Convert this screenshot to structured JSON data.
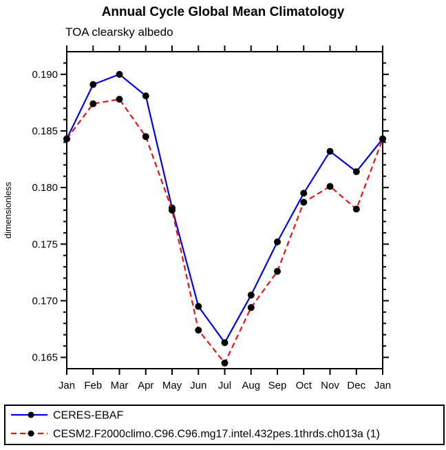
{
  "chart_data": {
    "type": "line",
    "title": "Annual Cycle Global Mean Climatology",
    "subtitle": "TOA clearsky albedo",
    "ylabel": "dimensionless",
    "xlabel": "",
    "categories": [
      "Jan",
      "Feb",
      "Mar",
      "Apr",
      "May",
      "Jun",
      "Jul",
      "Aug",
      "Sep",
      "Oct",
      "Nov",
      "Dec",
      "Jan"
    ],
    "series": [
      {
        "name": "CERES-EBAF",
        "color": "#0000ee",
        "line_style": "solid",
        "marker": "circle",
        "marker_color": "#000000",
        "values": [
          0.1843,
          0.1891,
          0.19,
          0.1881,
          0.1782,
          0.1695,
          0.1663,
          0.1705,
          0.1752,
          0.1795,
          0.1832,
          0.1814,
          0.1843
        ]
      },
      {
        "name": "CESM2.F2000climo.C96.C96.mg17.intel.432pes.1thrds.ch013a (1)",
        "color": "#ee1111",
        "line_style": "dashed",
        "marker": "circle",
        "marker_color": "#000000",
        "values": [
          0.1843,
          0.1874,
          0.1878,
          0.1845,
          0.178,
          0.1674,
          0.1645,
          0.1694,
          0.1726,
          0.1787,
          0.1801,
          0.1781,
          0.1843
        ]
      }
    ],
    "ylim": [
      0.164,
      0.192
    ],
    "yticks_major": [
      0.165,
      0.17,
      0.175,
      0.18,
      0.185,
      0.19
    ],
    "ytick_labels": [
      "0.165",
      "0.170",
      "0.175",
      "0.180",
      "0.185",
      "0.190"
    ],
    "ytick_minor_step": 0.001,
    "grid": false,
    "legend_position": "bottom",
    "axis_color": "#000000",
    "background": "#ffffff"
  }
}
